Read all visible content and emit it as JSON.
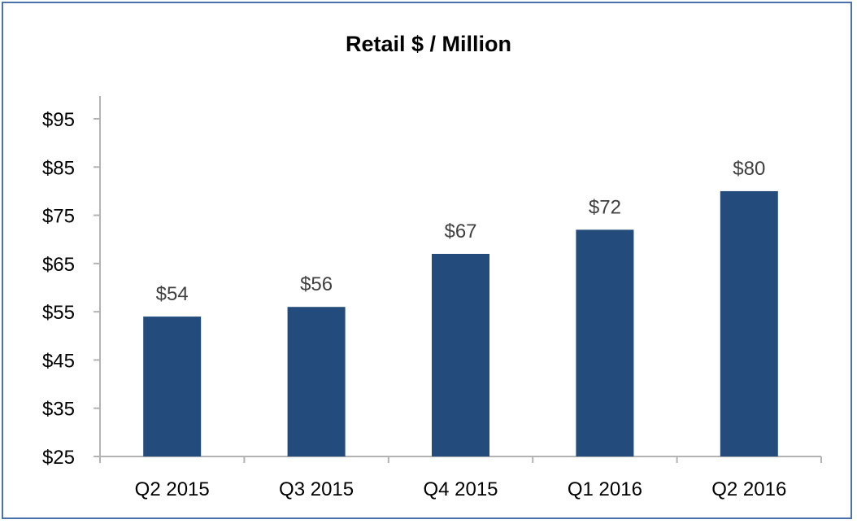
{
  "chart_data": {
    "type": "bar",
    "title": "Retail $ / Million",
    "categories": [
      "Q2 2015",
      "Q3 2015",
      "Q4 2015",
      "Q1 2016",
      "Q2 2016"
    ],
    "values": [
      54,
      56,
      67,
      72,
      80
    ],
    "data_labels": [
      "$54",
      "$56",
      "$67",
      "$72",
      "$80"
    ],
    "ylim": [
      25,
      95
    ],
    "yticks": [
      25,
      35,
      45,
      55,
      65,
      75,
      85,
      95
    ],
    "ytick_labels": [
      "$25",
      "$35",
      "$45",
      "$55",
      "$65",
      "$75",
      "$85",
      "$95"
    ],
    "xlabel": "",
    "ylabel": "",
    "grid": false,
    "legend": "none",
    "colors": {
      "bar": "#234b7c",
      "axis": "#b3b3b3",
      "frame": "#4a72a8",
      "data_label": "#404040"
    }
  }
}
